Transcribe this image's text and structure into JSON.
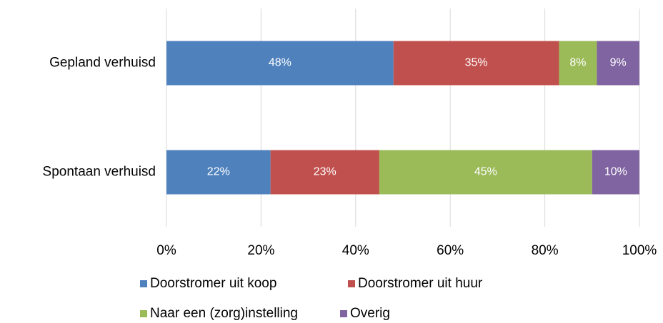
{
  "chart_data": {
    "type": "stacked-bar-horizontal",
    "categories": [
      "Gepland verhuisd",
      "Spontaan verhuisd"
    ],
    "series": [
      {
        "name": "Doorstromer uit koop",
        "color": "#4f81bd",
        "values": [
          48,
          22
        ],
        "value_labels": [
          "48%",
          "22%"
        ]
      },
      {
        "name": "Doorstromer uit huur",
        "color": "#c0504d",
        "values": [
          35,
          23
        ],
        "value_labels": [
          "35%",
          "23%"
        ]
      },
      {
        "name": "Naar een (zorg)instelling",
        "color": "#9bbb59",
        "values": [
          8,
          45
        ],
        "value_labels": [
          "8%",
          "45%"
        ]
      },
      {
        "name": "Overig",
        "color": "#8064a2",
        "values": [
          9,
          10
        ],
        "value_labels": [
          "9%",
          "10%"
        ]
      }
    ],
    "xlim": [
      0,
      100
    ],
    "xticks": [
      {
        "value": 0,
        "label": "0%"
      },
      {
        "value": 20,
        "label": "20%"
      },
      {
        "value": 40,
        "label": "40%"
      },
      {
        "value": 60,
        "label": "60%"
      },
      {
        "value": 80,
        "label": "80%"
      },
      {
        "value": 100,
        "label": "100%"
      }
    ],
    "grid": true,
    "legend": "bottom"
  }
}
